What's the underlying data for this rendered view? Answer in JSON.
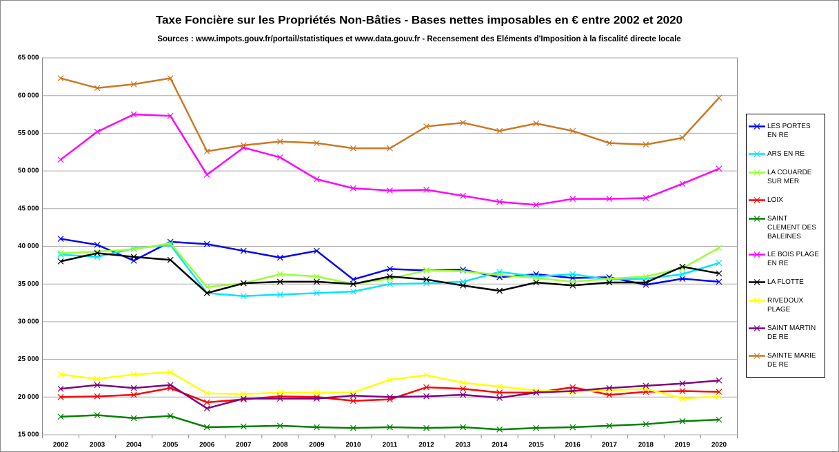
{
  "chart_data": {
    "type": "line",
    "title": "Taxe Foncière sur les Propriétés Non-Bâties - Bases nettes imposables en € entre 2002 et 2020",
    "subtitle": "Sources : www.impots.gouv.fr/portail/statistiques et www.data.gouv.fr - Recensement des Eléments d'Imposition à la fiscalité directe locale",
    "categories": [
      "2002",
      "2003",
      "2004",
      "2005",
      "2006",
      "2007",
      "2008",
      "2009",
      "2010",
      "2011",
      "2012",
      "2013",
      "2014",
      "2015",
      "2016",
      "2017",
      "2018",
      "2019",
      "2020"
    ],
    "ylim": [
      15000,
      65000
    ],
    "yticks": [
      {
        "value": 15000,
        "label": "15 000"
      },
      {
        "value": 20000,
        "label": "20 000"
      },
      {
        "value": 25000,
        "label": "25 000"
      },
      {
        "value": 30000,
        "label": "30 000"
      },
      {
        "value": 35000,
        "label": "35 000"
      },
      {
        "value": 40000,
        "label": "40 000"
      },
      {
        "value": 45000,
        "label": "45 000"
      },
      {
        "value": 50000,
        "label": "50 000"
      },
      {
        "value": 55000,
        "label": "55 000"
      },
      {
        "value": 60000,
        "label": "60 000"
      },
      {
        "value": 65000,
        "label": "65 000"
      }
    ],
    "grid": true,
    "legend": "right",
    "series": [
      {
        "name": "LES PORTES EN RE",
        "color": "#0000ff",
        "values": [
          41000,
          40200,
          38100,
          40600,
          40300,
          39400,
          38500,
          39400,
          35600,
          37000,
          36800,
          36900,
          35900,
          36300,
          35800,
          35900,
          34900,
          35700,
          35300
        ]
      },
      {
        "name": "ARS EN RE",
        "color": "#00e5ff",
        "values": [
          38900,
          38600,
          39700,
          40200,
          33800,
          33400,
          33600,
          33800,
          34000,
          35000,
          35100,
          35300,
          36600,
          36000,
          36300,
          35600,
          35700,
          36300,
          37800
        ]
      },
      {
        "name": "LA COUARDE SUR MER",
        "color": "#99ff33",
        "values": [
          39100,
          39300,
          39600,
          40400,
          34600,
          35100,
          36300,
          36000,
          35000,
          35700,
          36800,
          36700,
          36200,
          35800,
          35300,
          35700,
          36000,
          37100,
          39800
        ]
      },
      {
        "name": "LOIX",
        "color": "#ff0000",
        "values": [
          20000,
          20100,
          20300,
          21200,
          19300,
          19700,
          20100,
          20000,
          19500,
          19700,
          21300,
          21100,
          20600,
          20600,
          21300,
          20300,
          20700,
          20800,
          20700
        ]
      },
      {
        "name": "SAINT CLEMENT DES BALEINES",
        "color": "#008000",
        "values": [
          17400,
          17600,
          17200,
          17500,
          16000,
          16100,
          16200,
          16000,
          15900,
          16000,
          15900,
          16000,
          15700,
          15900,
          16000,
          16200,
          16400,
          16800,
          17000
        ]
      },
      {
        "name": "LE BOIS PLAGE EN RE",
        "color": "#ff00ff",
        "values": [
          51500,
          55200,
          57500,
          57300,
          49500,
          53100,
          51800,
          48900,
          47700,
          47400,
          47500,
          46700,
          45900,
          45500,
          46300,
          46300,
          46400,
          48300,
          50300
        ]
      },
      {
        "name": "LA FLOTTE",
        "color": "#000000",
        "values": [
          38000,
          39100,
          38600,
          38200,
          33800,
          35100,
          35300,
          35300,
          35000,
          36000,
          35600,
          34800,
          34100,
          35200,
          34800,
          35200,
          35200,
          37300,
          36400
        ]
      },
      {
        "name": "RIVEDOUX PLAGE",
        "color": "#ffff00",
        "values": [
          23000,
          22400,
          23000,
          23300,
          20500,
          20400,
          20600,
          20600,
          20600,
          22300,
          22900,
          21900,
          21400,
          20900,
          20700,
          20900,
          21100,
          19800,
          20100
        ]
      },
      {
        "name": "SAINT MARTIN DE RE",
        "color": "#7f007f",
        "values": [
          21100,
          21600,
          21200,
          21600,
          18500,
          19800,
          19800,
          19800,
          20200,
          20000,
          20100,
          20300,
          19900,
          20600,
          20800,
          21200,
          21500,
          21800,
          22200
        ]
      },
      {
        "name": "SAINTE MARIE DE RE",
        "color": "#cc7722",
        "values": [
          62300,
          61000,
          61500,
          62300,
          52600,
          53400,
          53900,
          53700,
          53000,
          53000,
          55900,
          56400,
          55300,
          56300,
          55300,
          53700,
          53500,
          54400,
          59700
        ]
      }
    ]
  }
}
